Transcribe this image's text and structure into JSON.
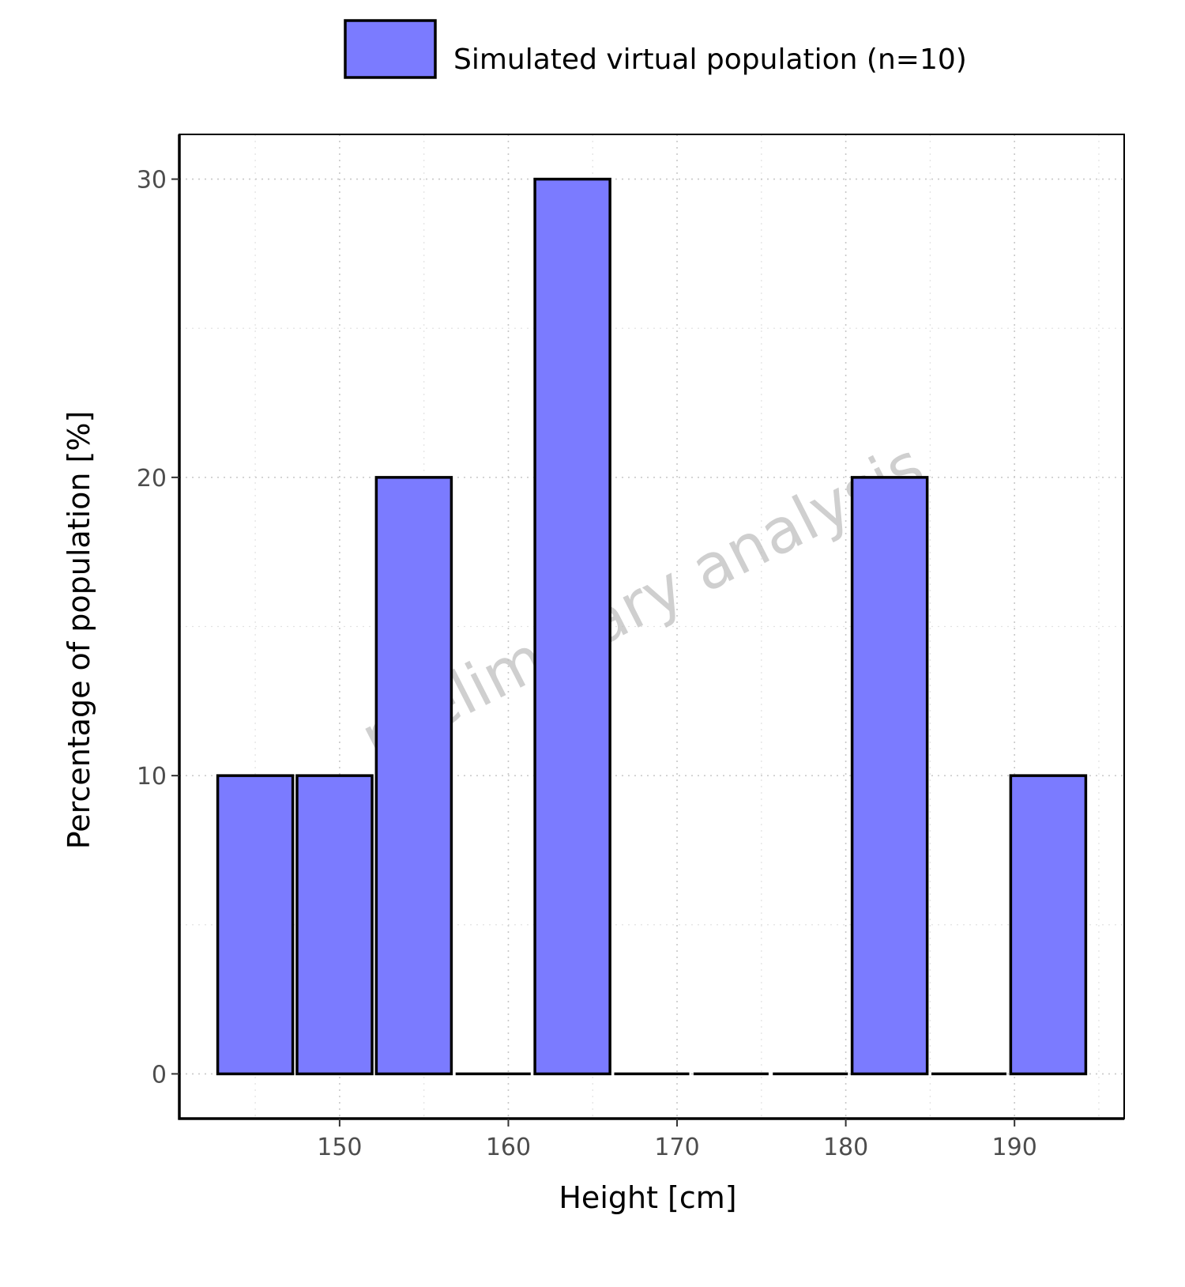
{
  "chart_data": {
    "type": "bar",
    "xlabel": "Height [cm]",
    "ylabel": "Percentage of population [%]",
    "legend": {
      "position": "top",
      "entries": [
        {
          "label": "Simulated virtual population (n=10)",
          "color": "#7b7bff"
        }
      ]
    },
    "watermark": "preliminary analysis",
    "bar_color": "#7b7bff",
    "bar_outline": "#000000",
    "bin_width": 5,
    "bins": [
      {
        "center": 145,
        "value": 10
      },
      {
        "center": 149.7,
        "value": 10
      },
      {
        "center": 154.4,
        "value": 20
      },
      {
        "center": 159.1,
        "value": 0
      },
      {
        "center": 163.8,
        "value": 30
      },
      {
        "center": 168.5,
        "value": 0
      },
      {
        "center": 173.2,
        "value": 0
      },
      {
        "center": 177.9,
        "value": 0
      },
      {
        "center": 182.6,
        "value": 20
      },
      {
        "center": 187.3,
        "value": 0
      },
      {
        "center": 192,
        "value": 10
      }
    ],
    "x_ticks": [
      "150",
      "160",
      "170",
      "180",
      "190"
    ],
    "x_tick_values": [
      150,
      160,
      170,
      180,
      190
    ],
    "y_ticks": [
      "0",
      "10",
      "20",
      "30"
    ],
    "y_tick_values": [
      0,
      10,
      20,
      30
    ],
    "xlim": [
      140.5,
      196.5
    ],
    "ylim": [
      -1.5,
      31.5
    ],
    "grid": true
  }
}
